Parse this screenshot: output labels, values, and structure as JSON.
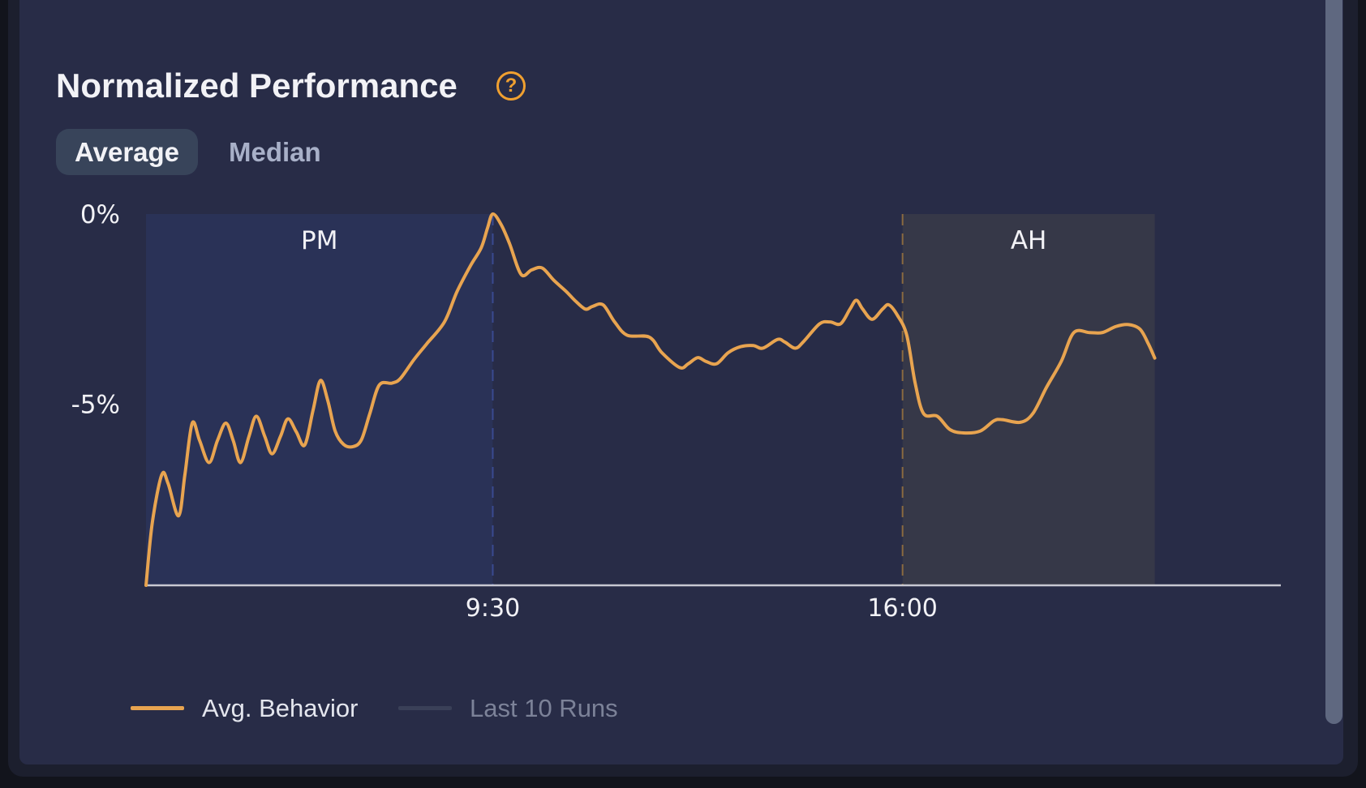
{
  "header": {
    "title": "Normalized Performance",
    "help_icon": "question-circle-icon"
  },
  "tabs": [
    {
      "label": "Average",
      "active": true
    },
    {
      "label": "Median",
      "active": false
    }
  ],
  "colors": {
    "line": "#e8a450",
    "pm_band": "#2a3257",
    "ah_band": "#363848",
    "pm_divider": "#3a4a90",
    "ah_divider": "#8a6a40",
    "accent": "#f0a030"
  },
  "legend": [
    {
      "label": "Avg. Behavior",
      "color": "#e8a450",
      "active": true
    },
    {
      "label": "Last 10 Runs",
      "color": "#3a4058",
      "active": false
    }
  ],
  "chart_data": {
    "type": "line",
    "xlim": [
      "4:00",
      "22:00"
    ],
    "ylim": [
      -9.77,
      0
    ],
    "y_ticks": [
      {
        "value": 0,
        "label": "0%"
      },
      {
        "value": -5,
        "label": "-5%"
      }
    ],
    "x_ticks": [
      {
        "value": "9:30",
        "label": "9:30"
      },
      {
        "value": "16:00",
        "label": "16:00"
      }
    ],
    "regions": [
      {
        "label": "PM",
        "start": "4:00",
        "end": "9:30"
      },
      {
        "label": "AH",
        "start": "16:00",
        "end": "20:00"
      }
    ],
    "series": [
      {
        "name": "Avg. Behavior",
        "points": [
          [
            "4:00",
            -9.77
          ],
          [
            "4:06",
            -8.12
          ],
          [
            "4:15",
            -6.86
          ],
          [
            "4:21",
            -7.09
          ],
          [
            "4:31",
            -7.94
          ],
          [
            "4:37",
            -6.86
          ],
          [
            "4:44",
            -5.5
          ],
          [
            "4:51",
            -5.96
          ],
          [
            "5:00",
            -6.54
          ],
          [
            "5:08",
            -5.96
          ],
          [
            "5:16",
            -5.5
          ],
          [
            "5:23",
            -5.96
          ],
          [
            "5:30",
            -6.54
          ],
          [
            "5:38",
            -5.85
          ],
          [
            "5:45",
            -5.32
          ],
          [
            "5:53",
            -5.85
          ],
          [
            "6:00",
            -6.31
          ],
          [
            "6:08",
            -5.85
          ],
          [
            "6:15",
            -5.39
          ],
          [
            "6:23",
            -5.73
          ],
          [
            "6:31",
            -6.08
          ],
          [
            "6:39",
            -5.16
          ],
          [
            "6:46",
            -4.38
          ],
          [
            "6:53",
            -4.91
          ],
          [
            "7:00",
            -5.71
          ],
          [
            "7:08",
            -6.06
          ],
          [
            "7:17",
            -6.12
          ],
          [
            "7:25",
            -5.94
          ],
          [
            "7:33",
            -5.25
          ],
          [
            "7:42",
            -4.5
          ],
          [
            "7:54",
            -4.45
          ],
          [
            "8:02",
            -4.33
          ],
          [
            "8:15",
            -3.83
          ],
          [
            "8:27",
            -3.42
          ],
          [
            "8:44",
            -2.84
          ],
          [
            "8:56",
            -2.04
          ],
          [
            "9:09",
            -1.35
          ],
          [
            "9:19",
            -0.89
          ],
          [
            "9:25",
            -0.37
          ],
          [
            "9:30",
            0
          ],
          [
            "9:38",
            -0.28
          ],
          [
            "9:46",
            -0.78
          ],
          [
            "9:57",
            -1.59
          ],
          [
            "10:07",
            -1.47
          ],
          [
            "10:17",
            -1.42
          ],
          [
            "10:28",
            -1.74
          ],
          [
            "10:40",
            -2.04
          ],
          [
            "10:48",
            -2.27
          ],
          [
            "10:58",
            -2.5
          ],
          [
            "11:05",
            -2.43
          ],
          [
            "11:15",
            -2.39
          ],
          [
            "11:26",
            -2.84
          ],
          [
            "11:38",
            -3.19
          ],
          [
            "11:59",
            -3.24
          ],
          [
            "12:11",
            -3.65
          ],
          [
            "12:28",
            -4.04
          ],
          [
            "12:36",
            -3.94
          ],
          [
            "12:45",
            -3.78
          ],
          [
            "12:53",
            -3.88
          ],
          [
            "13:03",
            -3.94
          ],
          [
            "13:14",
            -3.65
          ],
          [
            "13:26",
            -3.49
          ],
          [
            "13:38",
            -3.46
          ],
          [
            "13:47",
            -3.53
          ],
          [
            "14:01",
            -3.3
          ],
          [
            "14:08",
            -3.37
          ],
          [
            "14:18",
            -3.53
          ],
          [
            "14:26",
            -3.35
          ],
          [
            "14:41",
            -2.89
          ],
          [
            "14:51",
            -2.84
          ],
          [
            "15:01",
            -2.89
          ],
          [
            "15:10",
            -2.5
          ],
          [
            "15:16",
            -2.27
          ],
          [
            "15:22",
            -2.5
          ],
          [
            "15:31",
            -2.77
          ],
          [
            "15:41",
            -2.5
          ],
          [
            "15:47",
            -2.39
          ],
          [
            "15:55",
            -2.66
          ],
          [
            "16:04",
            -3.19
          ],
          [
            "16:12",
            -4.45
          ],
          [
            "16:20",
            -5.25
          ],
          [
            "16:33",
            -5.32
          ],
          [
            "16:45",
            -5.67
          ],
          [
            "16:58",
            -5.76
          ],
          [
            "17:14",
            -5.71
          ],
          [
            "17:27",
            -5.44
          ],
          [
            "17:35",
            -5.41
          ],
          [
            "17:52",
            -5.48
          ],
          [
            "18:04",
            -5.25
          ],
          [
            "18:17",
            -4.56
          ],
          [
            "18:31",
            -3.88
          ],
          [
            "18:43",
            -3.12
          ],
          [
            "18:58",
            -3.12
          ],
          [
            "19:10",
            -3.12
          ],
          [
            "19:23",
            -2.96
          ],
          [
            "19:35",
            -2.91
          ],
          [
            "19:46",
            -3.03
          ],
          [
            "19:54",
            -3.42
          ],
          [
            "20:00",
            -3.79
          ]
        ]
      }
    ]
  }
}
